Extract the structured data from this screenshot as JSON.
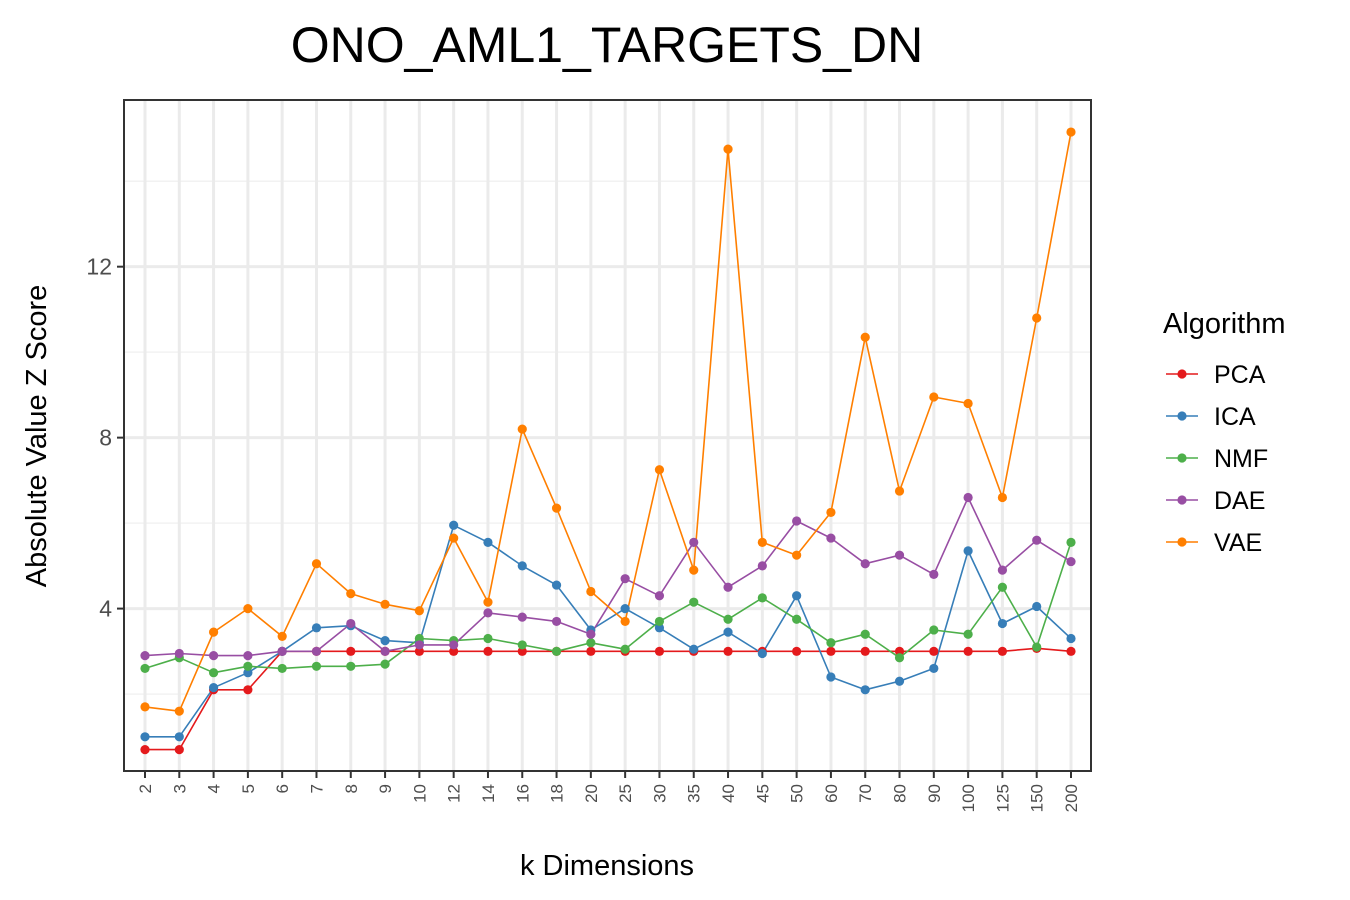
{
  "chart_data": {
    "type": "line",
    "title": "ONO_AML1_TARGETS_DN",
    "xlabel": "k Dimensions",
    "ylabel": "Absolute Value Z Score",
    "categories": [
      "2",
      "3",
      "4",
      "5",
      "6",
      "7",
      "8",
      "9",
      "10",
      "12",
      "14",
      "16",
      "18",
      "20",
      "25",
      "30",
      "35",
      "40",
      "45",
      "50",
      "60",
      "70",
      "80",
      "90",
      "100",
      "125",
      "150",
      "200"
    ],
    "yticks": [
      4,
      8,
      12
    ],
    "ylim": [
      0.2,
      15.9
    ],
    "grid": true,
    "legend": {
      "title": "Algorithm",
      "position": "right"
    },
    "series": [
      {
        "name": "PCA",
        "color": "#E41A1C",
        "values": [
          0.7,
          0.7,
          2.1,
          2.1,
          3.0,
          3.0,
          3.0,
          3.0,
          3.0,
          3.0,
          3.0,
          3.0,
          3.0,
          3.0,
          3.0,
          3.0,
          3.0,
          3.0,
          3.0,
          3.0,
          3.0,
          3.0,
          3.0,
          3.0,
          3.0,
          3.0,
          3.07,
          3.0
        ]
      },
      {
        "name": "ICA",
        "color": "#377EB8",
        "values": [
          1.0,
          1.0,
          2.15,
          2.5,
          3.0,
          3.55,
          3.6,
          3.25,
          3.2,
          5.95,
          5.55,
          5.0,
          4.55,
          3.5,
          4.0,
          3.55,
          3.05,
          3.45,
          2.95,
          4.3,
          2.4,
          2.1,
          2.3,
          2.6,
          5.35,
          3.65,
          4.05,
          3.3
        ]
      },
      {
        "name": "NMF",
        "color": "#4DAF4A",
        "values": [
          2.6,
          2.85,
          2.5,
          2.65,
          2.6,
          2.65,
          2.65,
          2.7,
          3.3,
          3.25,
          3.3,
          3.15,
          3.0,
          3.2,
          3.05,
          3.7,
          4.15,
          3.75,
          4.25,
          3.75,
          3.2,
          3.4,
          2.85,
          3.5,
          3.4,
          4.5,
          3.1,
          5.55
        ]
      },
      {
        "name": "DAE",
        "color": "#984EA3",
        "values": [
          2.9,
          2.95,
          2.9,
          2.9,
          3.0,
          3.0,
          3.65,
          3.0,
          3.15,
          3.15,
          3.9,
          3.8,
          3.7,
          3.4,
          4.7,
          4.3,
          5.55,
          4.5,
          5.0,
          6.05,
          5.65,
          5.05,
          5.25,
          4.8,
          6.6,
          4.9,
          5.6,
          5.1
        ]
      },
      {
        "name": "VAE",
        "color": "#FF7F00",
        "values": [
          1.7,
          1.6,
          3.45,
          4.0,
          3.35,
          5.05,
          4.35,
          4.1,
          3.95,
          5.65,
          4.15,
          8.2,
          6.35,
          4.4,
          3.7,
          7.25,
          4.9,
          14.75,
          5.55,
          5.25,
          6.25,
          10.35,
          6.75,
          8.95,
          8.8,
          6.6,
          10.8,
          15.15
        ]
      }
    ]
  }
}
